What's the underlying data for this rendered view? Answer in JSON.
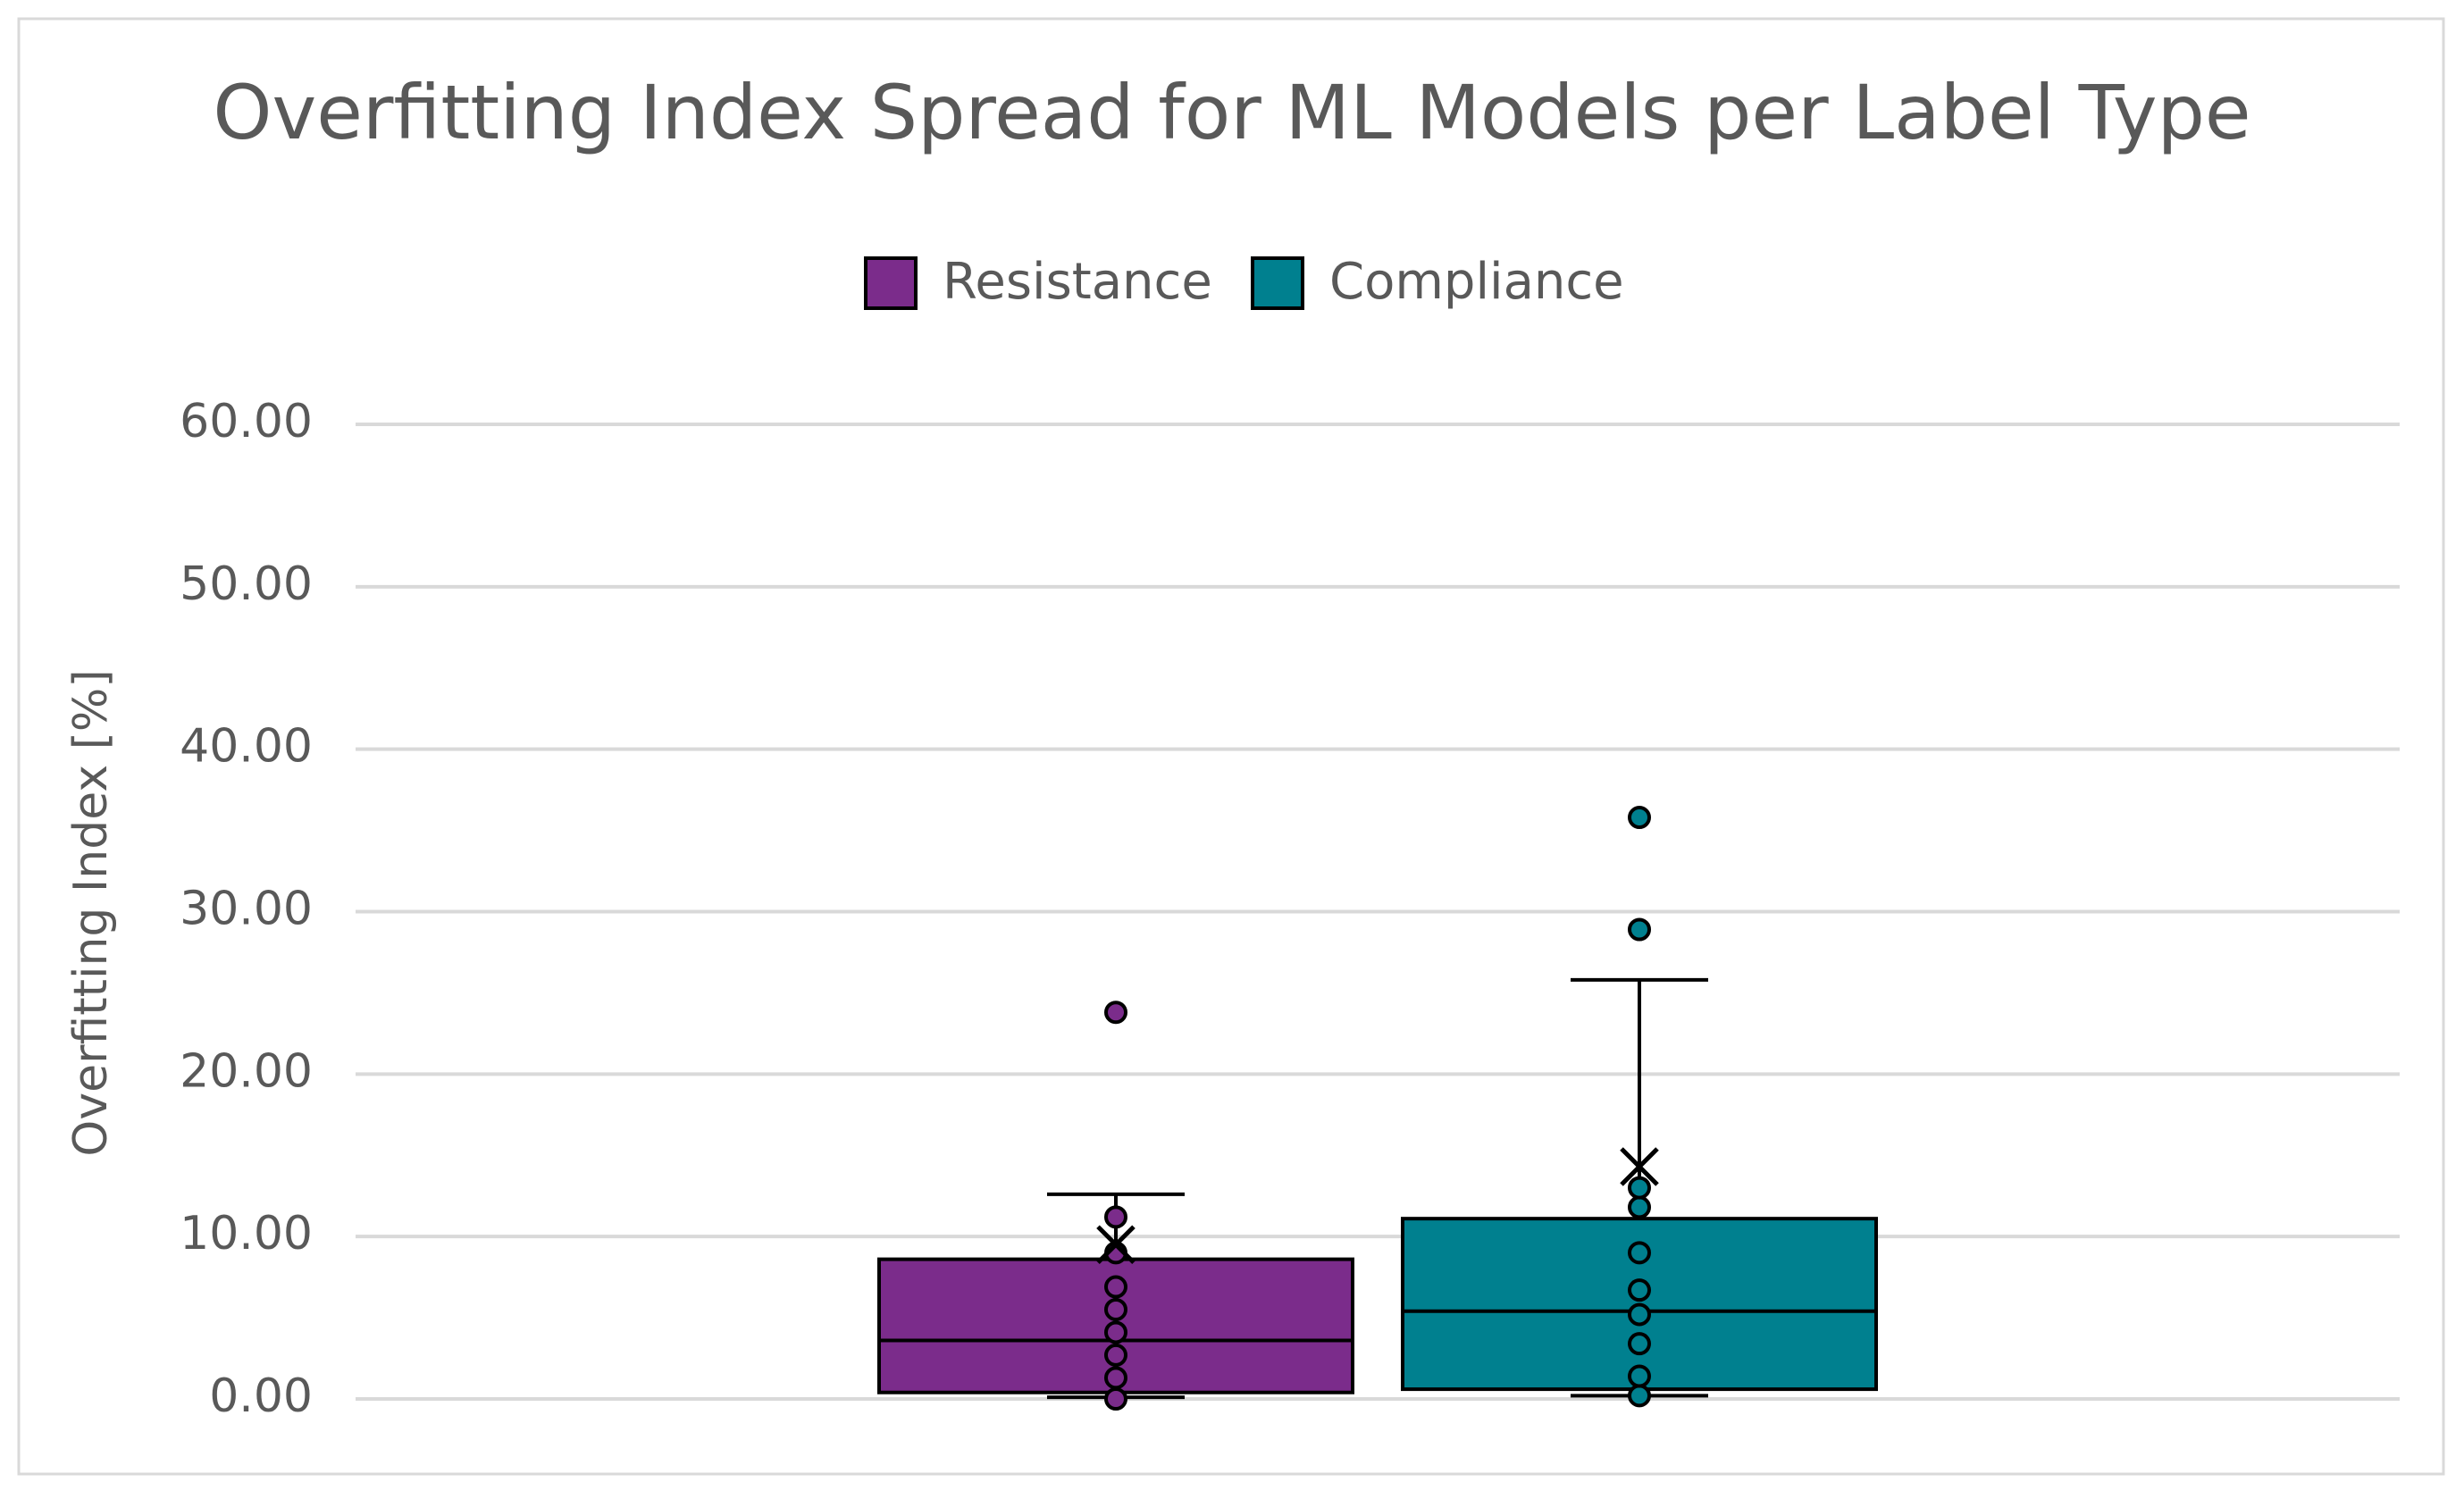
{
  "chart_data": {
    "type": "box",
    "title": "Overfitting Index Spread for ML Models per Label Type",
    "y_label": "Overfitting Index [%]",
    "ylim": [
      0,
      60
    ],
    "yticks": [
      {
        "value": 0,
        "label": "0.00"
      },
      {
        "value": 10,
        "label": "10.00"
      },
      {
        "value": 20,
        "label": "20.00"
      },
      {
        "value": 30,
        "label": "30.00"
      },
      {
        "value": 40,
        "label": "40.00"
      },
      {
        "value": 50,
        "label": "50.00"
      },
      {
        "value": 60,
        "label": "60.00"
      }
    ],
    "grid": true,
    "legend": "top",
    "series": [
      {
        "name": "Resistance",
        "color": "#7b2c8b",
        "min": 0.1,
        "q1": 0.4,
        "median": 3.6,
        "q3": 8.6,
        "max": 12.6,
        "mean": 9.5,
        "points": [
          0,
          1.3,
          2.7,
          4.1,
          5.5,
          6.9,
          9.0,
          11.2
        ],
        "outliers": [
          23.8
        ]
      },
      {
        "name": "Compliance",
        "color": "#00808f",
        "min": 0.2,
        "q1": 0.6,
        "median": 5.4,
        "q3": 11.1,
        "max": 25.8,
        "mean": 14.3,
        "points": [
          0.2,
          1.4,
          3.4,
          5.2,
          6.7,
          9.0,
          11.8,
          13.0
        ],
        "outliers": [
          28.9,
          35.8
        ]
      }
    ]
  }
}
